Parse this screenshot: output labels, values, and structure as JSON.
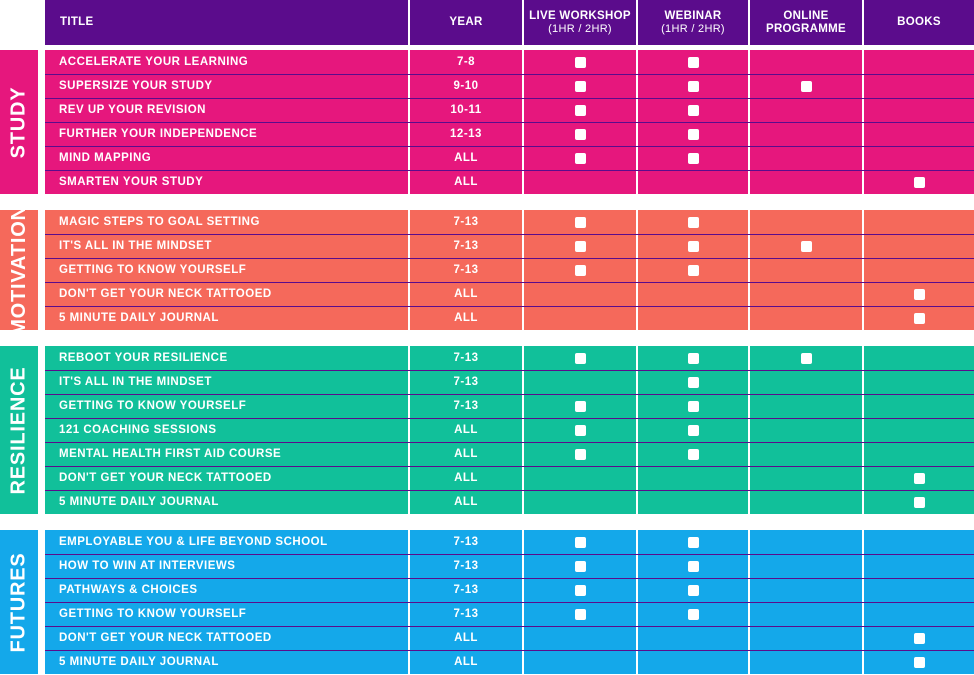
{
  "header": {
    "title": "TITLE",
    "year": "YEAR",
    "live_workshop": "LIVE WORKSHOP",
    "live_workshop_sub": "(1HR / 2HR)",
    "webinar": "WEBINAR",
    "webinar_sub": "(1HR / 2HR)",
    "online_1": "ONLINE",
    "online_2": "PROGRAMME",
    "books": "BOOKS"
  },
  "colors": {
    "header": "#5b0c8c",
    "study": "#e6177d",
    "motivation": "#f5695b",
    "resilience": "#11c09a",
    "futures": "#14a8ea",
    "row_divider": "#5b0c8c"
  },
  "check_icon": "white-square-checkbox",
  "sections": [
    {
      "name": "STUDY",
      "rows": [
        {
          "title": "ACCELERATE YOUR LEARNING",
          "year": "7-8",
          "live": true,
          "webinar": true,
          "online": false,
          "books": false
        },
        {
          "title": "SUPERSIZE YOUR STUDY",
          "year": "9-10",
          "live": true,
          "webinar": true,
          "online": true,
          "books": false
        },
        {
          "title": "REV UP YOUR REVISION",
          "year": "10-11",
          "live": true,
          "webinar": true,
          "online": false,
          "books": false
        },
        {
          "title": "FURTHER YOUR INDEPENDENCE",
          "year": "12-13",
          "live": true,
          "webinar": true,
          "online": false,
          "books": false
        },
        {
          "title": "MIND MAPPING",
          "year": "ALL",
          "live": true,
          "webinar": true,
          "online": false,
          "books": false
        },
        {
          "title": "SMARTEN YOUR STUDY",
          "year": "ALL",
          "live": false,
          "webinar": false,
          "online": false,
          "books": true
        }
      ]
    },
    {
      "name": "MOTIVATION",
      "rows": [
        {
          "title": "MAGIC STEPS TO GOAL SETTING",
          "year": "7-13",
          "live": true,
          "webinar": true,
          "online": false,
          "books": false
        },
        {
          "title": "IT'S ALL IN THE MINDSET",
          "year": "7-13",
          "live": true,
          "webinar": true,
          "online": true,
          "books": false
        },
        {
          "title": "GETTING TO KNOW YOURSELF",
          "year": "7-13",
          "live": true,
          "webinar": true,
          "online": false,
          "books": false
        },
        {
          "title": "DON'T GET YOUR NECK TATTOOED",
          "year": "ALL",
          "live": false,
          "webinar": false,
          "online": false,
          "books": true
        },
        {
          "title": "5 MINUTE DAILY JOURNAL",
          "year": "ALL",
          "live": false,
          "webinar": false,
          "online": false,
          "books": true
        }
      ]
    },
    {
      "name": "RESILIENCE",
      "rows": [
        {
          "title": "REBOOT YOUR RESILIENCE",
          "year": "7-13",
          "live": true,
          "webinar": true,
          "online": true,
          "books": false
        },
        {
          "title": "IT'S ALL IN THE MINDSET",
          "year": "7-13",
          "live": false,
          "webinar": true,
          "online": false,
          "books": false
        },
        {
          "title": "GETTING TO KNOW YOURSELF",
          "year": "7-13",
          "live": true,
          "webinar": true,
          "online": false,
          "books": false
        },
        {
          "title": "121 COACHING SESSIONS",
          "year": "ALL",
          "live": true,
          "webinar": true,
          "online": false,
          "books": false
        },
        {
          "title": "MENTAL HEALTH FIRST AID COURSE",
          "year": "ALL",
          "live": true,
          "webinar": true,
          "online": false,
          "books": false
        },
        {
          "title": "DON'T GET YOUR NECK TATTOOED",
          "year": "ALL",
          "live": false,
          "webinar": false,
          "online": false,
          "books": true
        },
        {
          "title": "5 MINUTE DAILY JOURNAL",
          "year": "ALL",
          "live": false,
          "webinar": false,
          "online": false,
          "books": true
        }
      ]
    },
    {
      "name": "FUTURES",
      "rows": [
        {
          "title": "EMPLOYABLE YOU & LIFE BEYOND SCHOOL",
          "year": "7-13",
          "live": true,
          "webinar": true,
          "online": false,
          "books": false
        },
        {
          "title": "HOW TO WIN AT INTERVIEWS",
          "year": "7-13",
          "live": true,
          "webinar": true,
          "online": false,
          "books": false
        },
        {
          "title": "PATHWAYS & CHOICES",
          "year": "7-13",
          "live": true,
          "webinar": true,
          "online": false,
          "books": false
        },
        {
          "title": "GETTING TO KNOW YOURSELF",
          "year": "7-13",
          "live": true,
          "webinar": true,
          "online": false,
          "books": false
        },
        {
          "title": "DON'T GET YOUR NECK TATTOOED",
          "year": "ALL",
          "live": false,
          "webinar": false,
          "online": false,
          "books": true
        },
        {
          "title": "5 MINUTE DAILY JOURNAL",
          "year": "ALL",
          "live": false,
          "webinar": false,
          "online": false,
          "books": true
        }
      ]
    }
  ]
}
